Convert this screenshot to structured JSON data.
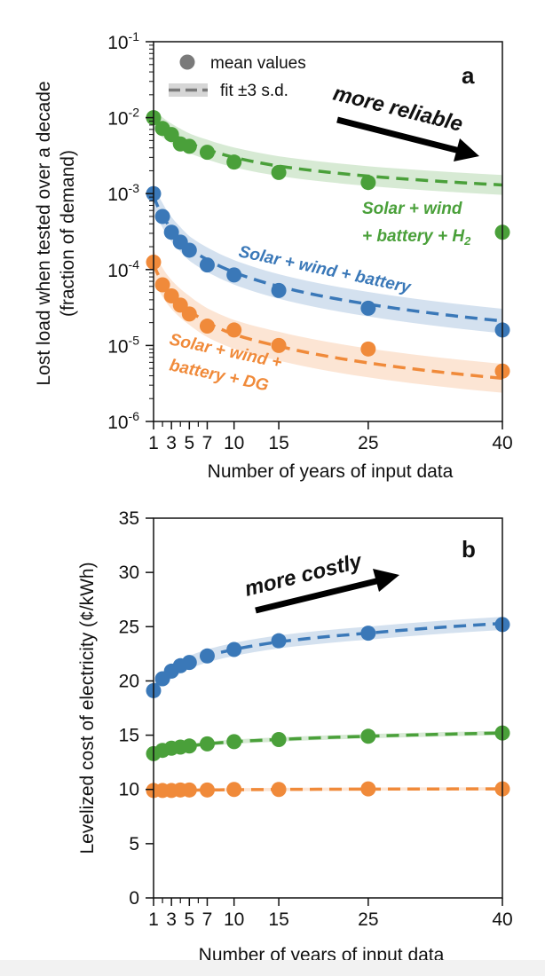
{
  "colors": {
    "blue": "#3a78b8",
    "green": "#4aa03a",
    "orange": "#f08a3a",
    "axis": "#111111",
    "arrow": "#000000"
  },
  "x_ticks": [
    1,
    3,
    5,
    7,
    10,
    15,
    25,
    40
  ],
  "x_minor_ticks": [
    2,
    4,
    6
  ],
  "chart_data": [
    {
      "panel": "a",
      "type": "scatter",
      "yscale": "log",
      "xlabel": "Number of years of input data",
      "ylabel_line1": "Lost load when tested over a decade",
      "ylabel_line2": "(fraction of demand)",
      "xlim": [
        1,
        40
      ],
      "ylim": [
        1e-06,
        0.1
      ],
      "y_ticks": [
        {
          "value": 1e-06,
          "base": "10",
          "exp": "-6"
        },
        {
          "value": 1e-05,
          "base": "10",
          "exp": "-5"
        },
        {
          "value": 0.0001,
          "base": "10",
          "exp": "-4"
        },
        {
          "value": 0.001,
          "base": "10",
          "exp": "-3"
        },
        {
          "value": 0.01,
          "base": "10",
          "exp": "-2"
        },
        {
          "value": 0.1,
          "base": "10",
          "exp": "-1"
        }
      ],
      "legend": {
        "mean_label": "mean values",
        "fit_label": "fit ±3 s.d."
      },
      "annotation": "more reliable",
      "series": [
        {
          "name": "Solar + wind + battery + H2",
          "color_key": "green",
          "x": [
            1,
            2,
            3,
            4,
            5,
            7,
            10,
            15,
            25,
            40
          ],
          "values": [
            0.01,
            0.0072,
            0.006,
            0.0045,
            0.0042,
            0.0035,
            0.0026,
            0.0019,
            0.0014,
            0.00031
          ],
          "fit": [
            0.0095,
            0.0075,
            0.0062,
            0.0053,
            0.0046,
            0.0038,
            0.003,
            0.0023,
            0.0017,
            0.0013
          ],
          "band_factor": 1.35
        },
        {
          "name": "Solar + wind + battery",
          "color_key": "blue",
          "x": [
            1,
            2,
            3,
            4,
            5,
            7,
            10,
            15,
            25,
            40
          ],
          "values": [
            0.001,
            0.0005,
            0.00031,
            0.00023,
            0.00018,
            0.000115,
            8.5e-05,
            5.3e-05,
            3.1e-05,
            1.6e-05
          ],
          "fit": [
            0.00095,
            0.00052,
            0.00034,
            0.00025,
            0.00019,
            0.000135,
            9.2e-05,
            6e-05,
            3.5e-05,
            2.1e-05
          ],
          "band_factor": 1.45
        },
        {
          "name": "Solar + wind + battery + DG",
          "color_key": "orange",
          "x": [
            1,
            2,
            3,
            4,
            5,
            7,
            10,
            15,
            25,
            40
          ],
          "values": [
            0.000125,
            6.3e-05,
            4.5e-05,
            3.4e-05,
            2.6e-05,
            1.8e-05,
            1.6e-05,
            1e-05,
            9e-06,
            4.6e-06
          ],
          "fit": [
            0.00012,
            6.8e-05,
            4.7e-05,
            3.6e-05,
            2.9e-05,
            2e-05,
            1.4e-05,
            9.8e-06,
            5.9e-06,
            3.7e-06
          ],
          "band_factor": 1.55
        }
      ],
      "series_labels": {
        "green_line1": "Solar + wind",
        "green_line2": "+ battery + H",
        "green_sub": "2",
        "blue": "Solar + wind + battery",
        "orange_line1": "Solar + wind +",
        "orange_line2": "battery + DG"
      }
    },
    {
      "panel": "b",
      "type": "scatter",
      "yscale": "linear",
      "xlabel": "Number of years of input data",
      "ylabel": "Levelized cost of electricity (¢/kWh)",
      "xlim": [
        1,
        40
      ],
      "ylim": [
        0,
        35
      ],
      "y_ticks": [
        0,
        5,
        10,
        15,
        20,
        25,
        30,
        35
      ],
      "annotation": "more costly",
      "series": [
        {
          "name": "Solar + wind + battery",
          "color_key": "blue",
          "x": [
            1,
            2,
            3,
            4,
            5,
            7,
            10,
            15,
            25,
            40
          ],
          "values": [
            19.1,
            20.2,
            20.9,
            21.4,
            21.7,
            22.3,
            22.9,
            23.7,
            24.4,
            25.2
          ],
          "fit": [
            19.3,
            20.2,
            20.8,
            21.3,
            21.7,
            22.3,
            22.9,
            23.6,
            24.4,
            25.3
          ],
          "band": 0.6
        },
        {
          "name": "Solar + wind + battery + H2",
          "color_key": "green",
          "x": [
            1,
            2,
            3,
            4,
            5,
            7,
            10,
            15,
            25,
            40
          ],
          "values": [
            13.3,
            13.6,
            13.8,
            13.9,
            14.0,
            14.2,
            14.4,
            14.6,
            14.9,
            15.2
          ],
          "fit": [
            13.3,
            13.6,
            13.8,
            13.9,
            14.0,
            14.2,
            14.4,
            14.6,
            14.9,
            15.2
          ],
          "band": 0.2
        },
        {
          "name": "Solar + wind + battery + DG",
          "color_key": "orange",
          "x": [
            1,
            2,
            3,
            4,
            5,
            7,
            10,
            15,
            25,
            40
          ],
          "values": [
            9.9,
            9.9,
            9.9,
            9.95,
            9.95,
            9.95,
            10.0,
            10.0,
            10.05,
            10.05
          ],
          "fit": [
            9.85,
            9.88,
            9.9,
            9.92,
            9.93,
            9.95,
            9.97,
            10.0,
            10.03,
            10.05
          ],
          "band": 0.15
        }
      ]
    }
  ]
}
